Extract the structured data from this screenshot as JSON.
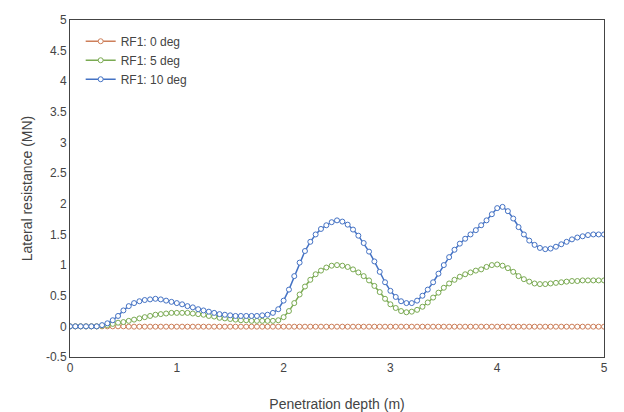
{
  "chart_data": {
    "type": "line",
    "xlabel": "Penetration depth (m)",
    "ylabel": "Lateral resistance (MN)",
    "x": [
      0.0,
      0.05,
      0.1,
      0.15,
      0.2,
      0.25,
      0.3,
      0.35,
      0.4,
      0.45,
      0.5,
      0.55,
      0.6,
      0.65,
      0.7,
      0.75,
      0.8,
      0.85,
      0.9,
      0.95,
      1.0,
      1.05,
      1.1,
      1.15,
      1.2,
      1.25,
      1.3,
      1.35,
      1.4,
      1.45,
      1.5,
      1.55,
      1.6,
      1.65,
      1.7,
      1.75,
      1.8,
      1.85,
      1.9,
      1.95,
      2.0,
      2.05,
      2.1,
      2.15,
      2.2,
      2.25,
      2.3,
      2.35,
      2.4,
      2.45,
      2.5,
      2.55,
      2.6,
      2.65,
      2.7,
      2.75,
      2.8,
      2.85,
      2.9,
      2.95,
      3.0,
      3.05,
      3.1,
      3.15,
      3.2,
      3.25,
      3.3,
      3.35,
      3.4,
      3.45,
      3.5,
      3.55,
      3.6,
      3.65,
      3.7,
      3.75,
      3.8,
      3.85,
      3.9,
      3.95,
      4.0,
      4.05,
      4.1,
      4.15,
      4.2,
      4.25,
      4.3,
      4.35,
      4.4,
      4.45,
      4.5,
      4.55,
      4.6,
      4.65,
      4.7,
      4.75,
      4.8,
      4.85,
      4.9,
      4.95,
      5.0
    ],
    "series": [
      {
        "name": "RF1: 0 deg",
        "color": "#cd7f5a",
        "values": [
          0.0,
          0.0,
          0.0,
          0.0,
          0.0,
          0.0,
          0.0,
          0.0,
          0.0,
          0.0,
          0.0,
          -0.005,
          -0.005,
          -0.005,
          -0.005,
          -0.005,
          -0.005,
          -0.005,
          -0.005,
          -0.005,
          -0.005,
          -0.005,
          -0.005,
          -0.005,
          -0.005,
          -0.005,
          -0.005,
          -0.005,
          -0.005,
          -0.005,
          -0.005,
          -0.005,
          -0.005,
          -0.005,
          -0.005,
          -0.005,
          -0.005,
          -0.005,
          -0.005,
          -0.005,
          -0.005,
          -0.005,
          -0.005,
          -0.005,
          -0.005,
          -0.005,
          -0.005,
          -0.005,
          -0.005,
          -0.005,
          -0.005,
          -0.005,
          -0.005,
          -0.005,
          -0.005,
          -0.005,
          -0.005,
          -0.005,
          -0.005,
          -0.005,
          -0.005,
          -0.005,
          -0.005,
          -0.005,
          -0.005,
          -0.005,
          -0.005,
          -0.005,
          -0.005,
          -0.005,
          -0.005,
          -0.005,
          -0.005,
          -0.005,
          -0.005,
          -0.005,
          -0.005,
          -0.005,
          -0.005,
          -0.005,
          -0.005,
          -0.005,
          -0.005,
          -0.005,
          -0.005,
          -0.005,
          -0.005,
          -0.005,
          -0.005,
          -0.005,
          -0.005,
          -0.005,
          -0.005,
          -0.005,
          -0.005,
          -0.005,
          -0.005,
          -0.005,
          -0.005,
          -0.005,
          -0.005
        ]
      },
      {
        "name": "RF1: 5 deg",
        "color": "#7aaa52",
        "values": [
          0.0,
          0.0,
          0.0,
          0.0,
          0.0,
          0.0,
          0.01,
          0.02,
          0.04,
          0.06,
          0.07,
          0.09,
          0.11,
          0.13,
          0.15,
          0.17,
          0.19,
          0.2,
          0.21,
          0.22,
          0.22,
          0.22,
          0.22,
          0.21,
          0.2,
          0.19,
          0.17,
          0.16,
          0.14,
          0.13,
          0.12,
          0.11,
          0.1,
          0.1,
          0.09,
          0.09,
          0.09,
          0.09,
          0.09,
          0.1,
          0.15,
          0.25,
          0.38,
          0.52,
          0.65,
          0.76,
          0.85,
          0.91,
          0.96,
          0.99,
          1.0,
          0.99,
          0.97,
          0.93,
          0.88,
          0.82,
          0.75,
          0.66,
          0.56,
          0.45,
          0.36,
          0.3,
          0.25,
          0.23,
          0.24,
          0.27,
          0.32,
          0.39,
          0.47,
          0.55,
          0.63,
          0.7,
          0.76,
          0.81,
          0.85,
          0.88,
          0.91,
          0.93,
          0.97,
          1.0,
          1.01,
          0.99,
          0.95,
          0.89,
          0.82,
          0.77,
          0.73,
          0.7,
          0.69,
          0.69,
          0.7,
          0.71,
          0.72,
          0.73,
          0.74,
          0.74,
          0.75,
          0.75,
          0.75,
          0.75,
          0.75
        ]
      },
      {
        "name": "RF1: 10 deg",
        "color": "#4472c4",
        "values": [
          0.0,
          0.0,
          0.0,
          0.0,
          0.0,
          0.0,
          0.02,
          0.05,
          0.1,
          0.17,
          0.26,
          0.33,
          0.38,
          0.41,
          0.43,
          0.44,
          0.45,
          0.44,
          0.42,
          0.4,
          0.38,
          0.36,
          0.33,
          0.31,
          0.28,
          0.26,
          0.24,
          0.22,
          0.2,
          0.19,
          0.18,
          0.17,
          0.17,
          0.17,
          0.17,
          0.17,
          0.18,
          0.19,
          0.22,
          0.28,
          0.42,
          0.6,
          0.82,
          1.04,
          1.23,
          1.38,
          1.5,
          1.59,
          1.65,
          1.7,
          1.73,
          1.71,
          1.66,
          1.58,
          1.48,
          1.36,
          1.22,
          1.06,
          0.89,
          0.72,
          0.58,
          0.48,
          0.41,
          0.38,
          0.38,
          0.42,
          0.5,
          0.6,
          0.72,
          0.86,
          1.0,
          1.13,
          1.25,
          1.35,
          1.43,
          1.5,
          1.57,
          1.65,
          1.73,
          1.83,
          1.93,
          1.95,
          1.88,
          1.76,
          1.62,
          1.5,
          1.4,
          1.33,
          1.28,
          1.26,
          1.27,
          1.3,
          1.34,
          1.38,
          1.42,
          1.45,
          1.47,
          1.49,
          1.5,
          1.5,
          1.5
        ]
      }
    ],
    "marker": "circle",
    "xlim": [
      0,
      5
    ],
    "xticks": [
      0,
      1,
      2,
      3,
      4,
      5
    ],
    "ylim": [
      -0.5,
      5
    ],
    "yticks": [
      -0.5,
      0,
      0.5,
      1,
      1.5,
      2,
      2.5,
      3,
      3.5,
      4,
      4.5,
      5
    ],
    "grid": false,
    "legend": "upper left"
  }
}
